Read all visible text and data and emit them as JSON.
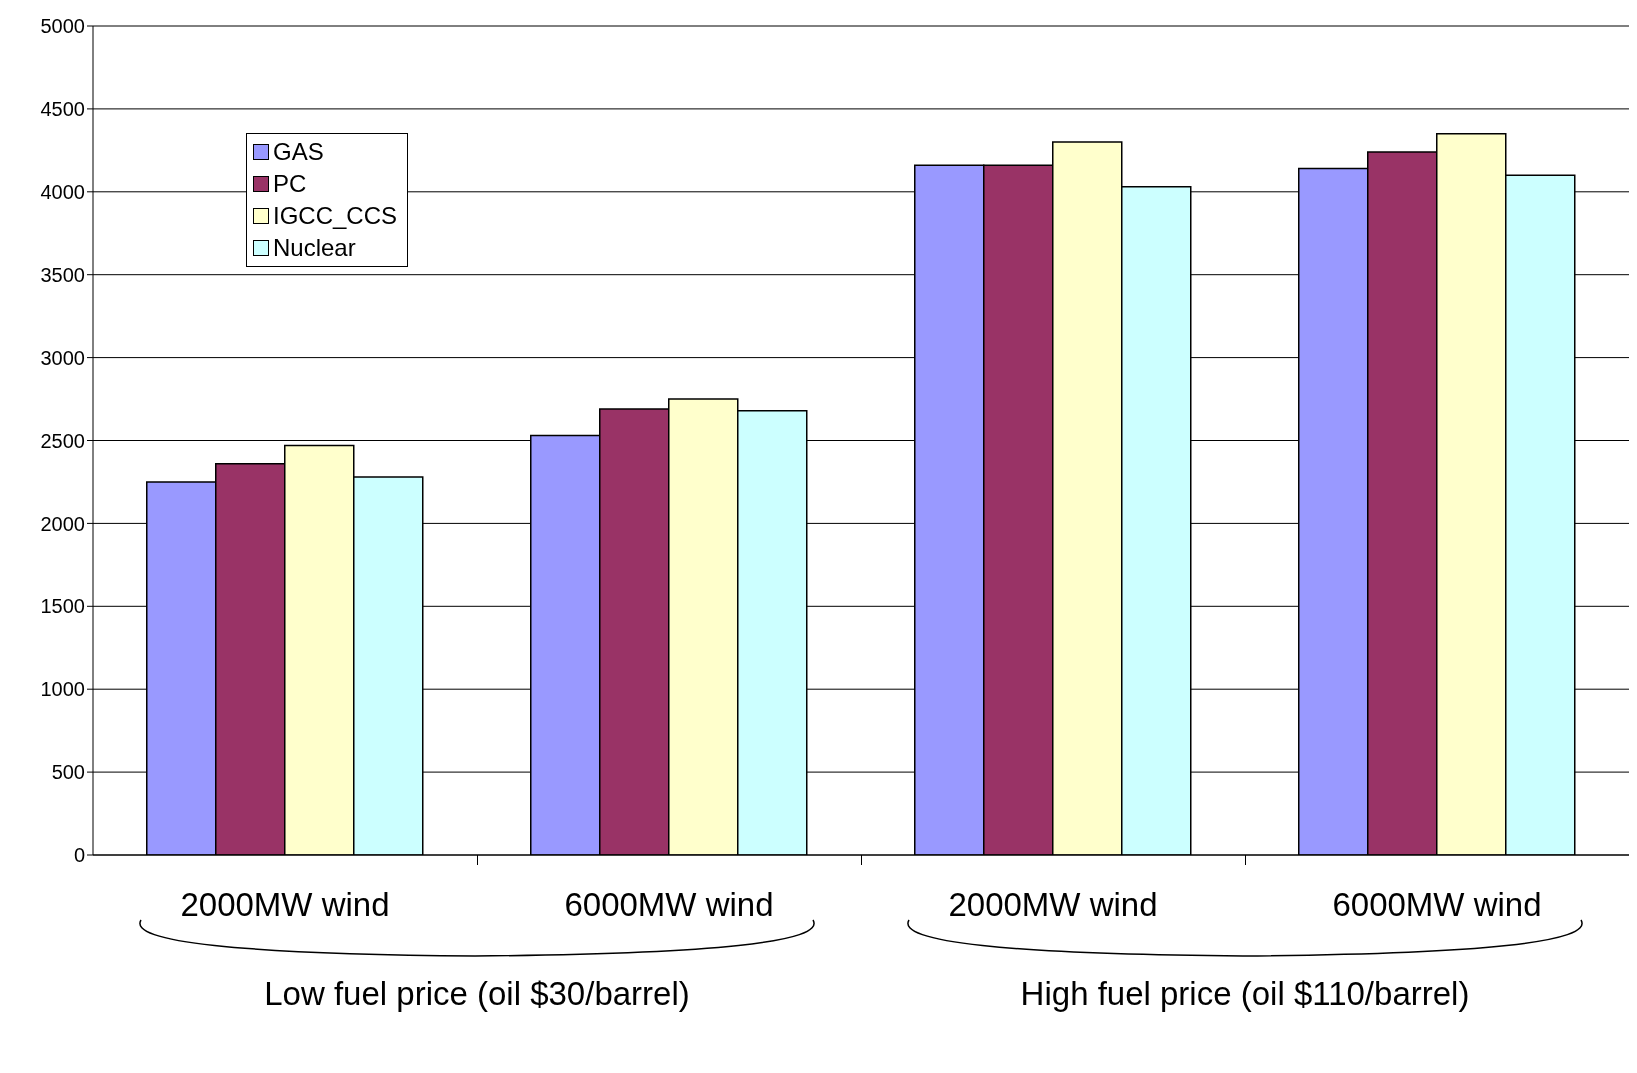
{
  "chart_data": {
    "type": "bar",
    "categories": [
      "2000MW wind",
      "6000MW wind",
      "2000MW wind",
      "6000MW wind"
    ],
    "series": [
      {
        "name": "GAS",
        "color": "#9999ff",
        "values": [
          2250,
          2530,
          4160,
          4140
        ]
      },
      {
        "name": "PC",
        "color": "#993366",
        "values": [
          2360,
          2690,
          4160,
          4240
        ]
      },
      {
        "name": "IGCC_CCS",
        "color": "#ffffcc",
        "values": [
          2470,
          2750,
          4300,
          4350
        ]
      },
      {
        "name": "Nuclear",
        "color": "#ccffff",
        "values": [
          2280,
          2680,
          4030,
          4100
        ]
      }
    ],
    "ylim": [
      0,
      5000
    ],
    "yticks": [
      0,
      500,
      1000,
      1500,
      2000,
      2500,
      3000,
      3500,
      4000,
      4500,
      5000
    ],
    "grid": "y",
    "legend": "top left",
    "annotations": [
      "Low fuel price (oil $30/barrel)",
      "High fuel price (oil $110/barrel)"
    ]
  }
}
